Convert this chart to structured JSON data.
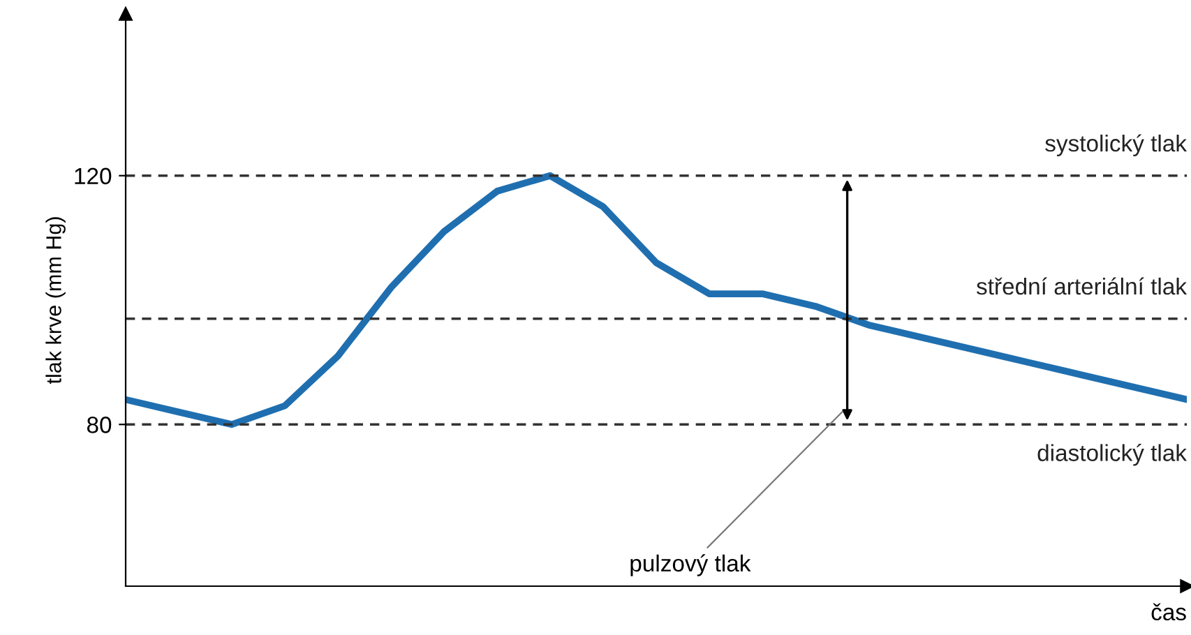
{
  "chart_data": {
    "type": "line",
    "xlabel": "čas",
    "ylabel": "tlak krve (mm Hg)",
    "categories": [
      null,
      null,
      null,
      null,
      null,
      null,
      null,
      null,
      null,
      null,
      null,
      null,
      null,
      null,
      null,
      null,
      null,
      null,
      null,
      null,
      null
    ],
    "series": [
      {
        "color": "#1f6fb0",
        "values": [
          84,
          82,
          80,
          83,
          91,
          102,
          111,
          117.5,
          120,
          115,
          106,
          101,
          101,
          99,
          96,
          94,
          92,
          90,
          88,
          86,
          84
        ]
      }
    ],
    "ylim": [
      54,
      146
    ],
    "yticks": [
      80,
      120
    ],
    "tick_labels": "y",
    "grid": false,
    "marker": "none",
    "line_style": "solid",
    "ref_lines": [
      {
        "axis": "y",
        "value": 120,
        "label": "systolický tlak",
        "color": "#333333",
        "line_style": "dashed"
      },
      {
        "axis": "y",
        "value": 97,
        "label": "střední arteriální tlak",
        "color": "#333333",
        "line_style": "dashed"
      },
      {
        "axis": "y",
        "value": 80,
        "label": "diastolický tlak",
        "color": "#333333",
        "line_style": "dashed"
      }
    ],
    "annotations": [
      "pulzový tlak"
    ]
  }
}
